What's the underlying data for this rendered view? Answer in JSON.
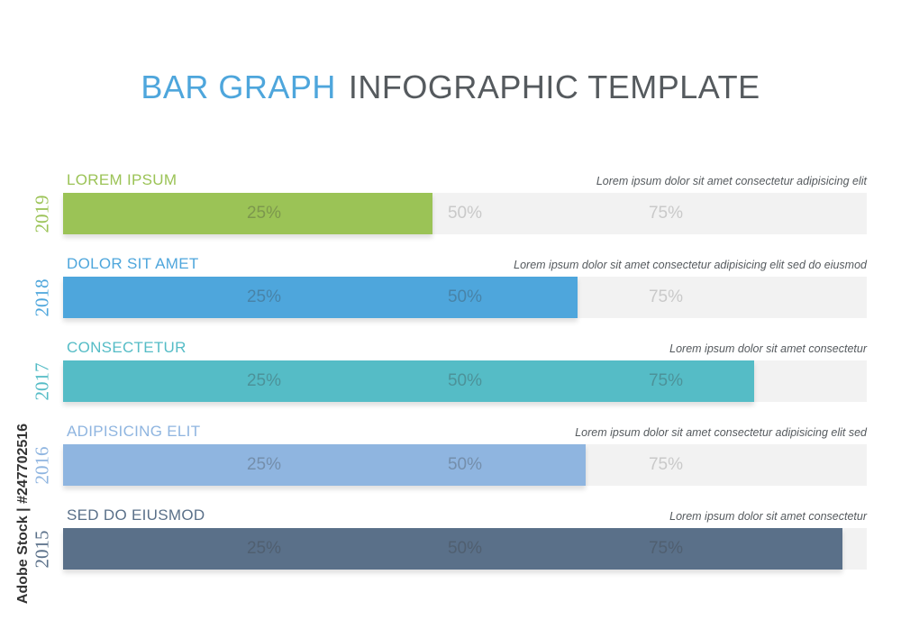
{
  "title": {
    "part1": "BAR GRAPH",
    "part2": "INFOGRAPHIC TEMPLATE"
  },
  "watermark": "Adobe Stock | #247702516",
  "chart_data": {
    "type": "bar",
    "orientation": "horizontal",
    "xlim": [
      0,
      100
    ],
    "tick_labels": [
      "25%",
      "50%",
      "75%"
    ],
    "categories": [
      "2019",
      "2018",
      "2017",
      "2016",
      "2015"
    ],
    "values": [
      46,
      64,
      86,
      65,
      97
    ],
    "rows": [
      {
        "year": "2019",
        "label": "LOREM IPSUM",
        "description": "Lorem ipsum dolor sit amet consectetur adipisicing elit",
        "value": 46,
        "color": "#9bc356"
      },
      {
        "year": "2018",
        "label": "DOLOR SIT AMET",
        "description": "Lorem ipsum dolor sit amet consectetur adipisicing elit sed do eiusmod",
        "value": 64,
        "color": "#4ea6dc"
      },
      {
        "year": "2017",
        "label": "CONSECTETUR",
        "description": "Lorem ipsum dolor sit amet consectetur",
        "value": 86,
        "color": "#55bcc6"
      },
      {
        "year": "2016",
        "label": "ADIPISICING ELIT",
        "description": "Lorem ipsum dolor sit amet consectetur adipisicing elit sed",
        "value": 65,
        "color": "#8fb5e0"
      },
      {
        "year": "2015",
        "label": "SED DO EIUSMOD",
        "description": "Lorem ipsum dolor sit amet consectetur",
        "value": 97,
        "color": "#5a7089"
      }
    ]
  }
}
